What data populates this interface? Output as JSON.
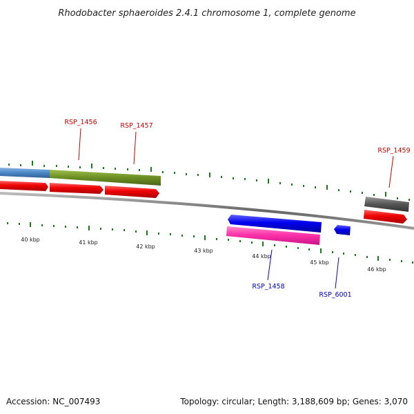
{
  "title": "Rhodobacter sphaeroides 2.4.1 chromosome 1, complete genome",
  "footer": {
    "accession": "Accession: NC_007493",
    "summary": "Topology: circular; Length: 3,188,609 bp; Genes: 3,070"
  },
  "scale": {
    "unit": "kbp",
    "labels": [
      "40 kbp",
      "41 kbp",
      "42 kbp",
      "43 kbp",
      "44 kbp",
      "45 kbp",
      "46 kbp"
    ]
  },
  "genes": [
    {
      "id": "RSP_1456",
      "label": "RSP_1456",
      "strand": "forward",
      "label_color": "#cc0000"
    },
    {
      "id": "RSP_1457",
      "label": "RSP_1457",
      "strand": "forward",
      "label_color": "#cc0000"
    },
    {
      "id": "RSP_1459",
      "label": "RSP_1459",
      "strand": "forward",
      "label_color": "#cc0000"
    },
    {
      "id": "RSP_1458",
      "label": "RSP_1458",
      "strand": "reverse",
      "label_color": "#0000cc"
    },
    {
      "id": "RSP_6001",
      "label": "RSP_6001",
      "strand": "reverse",
      "label_color": "#0000cc"
    }
  ],
  "colors": {
    "forward_cds": "#ee0000",
    "reverse_cds": "#0000ee",
    "reverse_gene": "#ff33aa",
    "cog_blue": "#4a86c6",
    "cog_green": "#6b8e23",
    "cog_grey": "#555555",
    "backbone": "#888888",
    "ticks": "#1a7a1a"
  }
}
